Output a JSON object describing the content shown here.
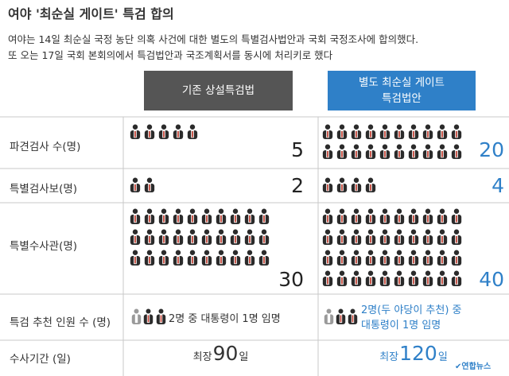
{
  "title": "여야 '최순실 게이트' 특검 합의",
  "subtitle": [
    "여야는 14일 최순실 국정 농단 의혹 사건에 대한 별도의 특별검사법안과 국회 국정조사에 합의했다.",
    "또 오는 17일 국회 본회의에서 특검법안과 국조계획서를 동시에 처리키로 했다"
  ],
  "columns": {
    "left": [
      "기존 상설특검법"
    ],
    "right": [
      "별도 최순실 게이트",
      "특검법안"
    ]
  },
  "colors": {
    "left_header": "#555555",
    "right_header": "#2f80c8",
    "accent": "#2f80c8",
    "figure_suit": "#2b2b2b",
    "figure_tie": "#c0392b",
    "figure_gray": "#9a9a9a"
  },
  "chart_data": {
    "type": "table",
    "title": "여야 '최순실 게이트' 특검 합의",
    "columns": [
      "기존 상설특검법",
      "별도 최순실 게이트 특검법안"
    ],
    "rows": [
      {
        "label": "파견검사  수(명)",
        "left": 5,
        "right": 20
      },
      {
        "label": "특별검사보(명)",
        "left": 2,
        "right": 4
      },
      {
        "label": "특별수사관(명)",
        "left": 30,
        "right": 40
      }
    ],
    "recommendation": {
      "label": "특검 추천 인원 수 (명)",
      "left": "2명 중 대통령이 1명 임명",
      "right": [
        "2명(두 야당이 추천) 중",
        "대통령이 1명 임명"
      ]
    },
    "period": {
      "label": "수사기간 (일)",
      "prefix": "최장",
      "suffix": "일",
      "left": 90,
      "right": 120
    }
  },
  "logo_text": "연합뉴스"
}
